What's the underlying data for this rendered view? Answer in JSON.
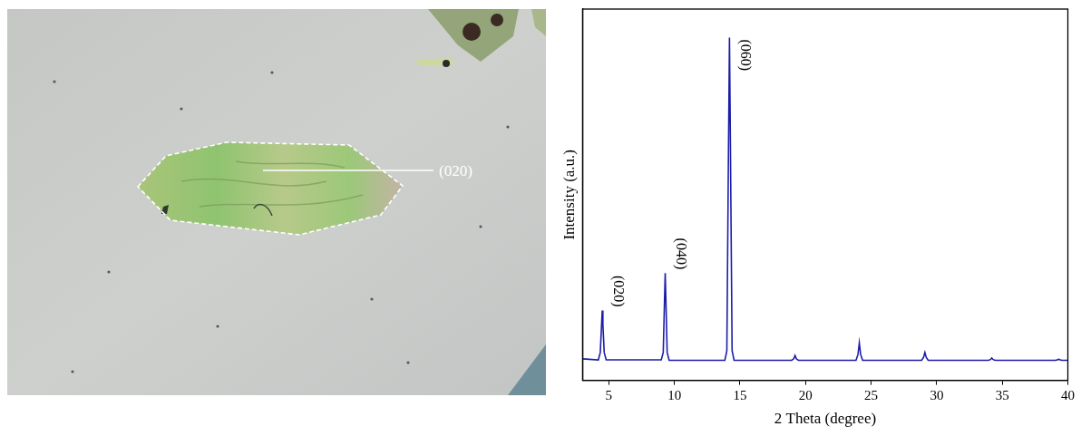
{
  "image": {
    "annotation": "(020)"
  },
  "chart_data": {
    "type": "line",
    "x_label": "2 Theta (degree)",
    "y_label": "Intensity (a.u.)",
    "x": [
      3,
      4.2,
      4.35,
      4.45,
      4.5,
      4.55,
      4.65,
      4.8,
      9.0,
      9.15,
      9.25,
      9.3,
      9.35,
      9.45,
      9.6,
      13.85,
      14.0,
      14.12,
      14.2,
      14.28,
      14.4,
      14.55,
      18.95,
      19.1,
      19.2,
      19.3,
      19.45,
      23.85,
      24.0,
      24.1,
      24.2,
      24.35,
      28.85,
      29.0,
      29.1,
      29.2,
      29.35,
      33.95,
      34.1,
      34.2,
      34.3,
      34.45,
      39.05,
      39.2,
      39.3,
      39.4,
      39.55,
      40
    ],
    "values": [
      5.8,
      5.5,
      7.5,
      15.0,
      18.8,
      15.0,
      7.5,
      5.5,
      5.5,
      7.5,
      22.0,
      28.9,
      22.0,
      7.5,
      5.4,
      5.4,
      8.0,
      60.0,
      92.3,
      60.0,
      8.0,
      5.4,
      5.4,
      5.8,
      6.7,
      5.8,
      5.4,
      5.4,
      7.0,
      10.1,
      7.0,
      5.4,
      5.4,
      6.2,
      7.5,
      6.2,
      5.4,
      5.4,
      5.6,
      6.0,
      5.6,
      5.4,
      5.4,
      5.5,
      5.7,
      5.5,
      5.4,
      5.4
    ],
    "color": "#1c1caa",
    "xlim": [
      3,
      40
    ],
    "xticks": [
      5,
      10,
      15,
      20,
      25,
      30,
      35,
      40
    ],
    "ylim": [
      0,
      100
    ],
    "tick_labels": "x",
    "grid": false,
    "annotations": [
      {
        "text": "(020)",
        "x": 4.5
      },
      {
        "text": "(040)",
        "x": 9.3
      },
      {
        "text": "(060)",
        "x": 14.2
      }
    ]
  }
}
